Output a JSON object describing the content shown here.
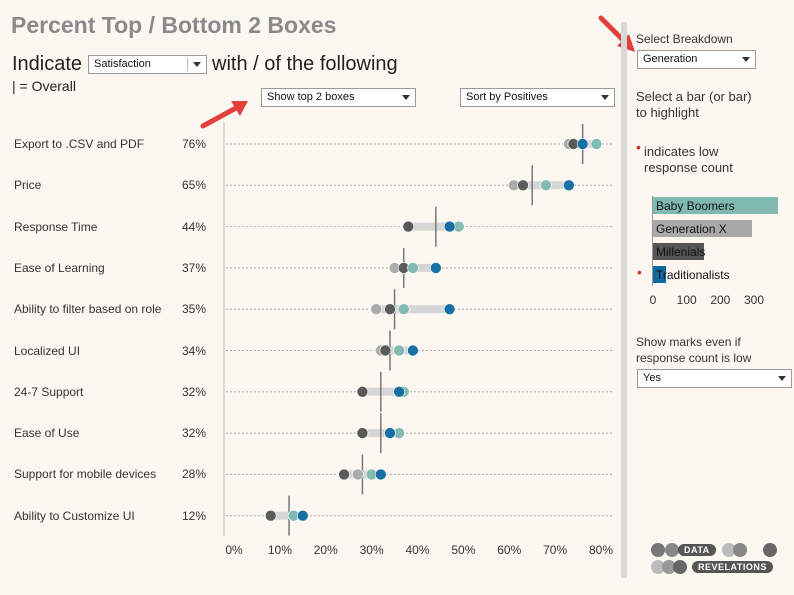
{
  "header": {
    "title": "Percent Top / Bottom 2 Boxes",
    "indicate_label": "Indicate",
    "with_label": "with / of the following",
    "overall_note": "| = Overall"
  },
  "controls": {
    "measure_dropdown": "Satisfaction",
    "boxes_dropdown": "Show top 2 boxes",
    "sort_dropdown": "Sort by Positives",
    "breakdown_dropdown": "Generation",
    "show_marks_dropdown": "Yes"
  },
  "sidebar": {
    "select_breakdown": "Select Breakdown",
    "select_bar_hint": "Select a bar (or bar) to highlight",
    "low_count_dot": "•",
    "low_count_hint": "indicates low response count",
    "show_marks_label": "Show marks even if response count is low"
  },
  "legend": {
    "items": [
      {
        "name": "Baby Boomers",
        "count": 370,
        "color": "#7fb9b0",
        "low": false
      },
      {
        "name": "Generation X",
        "count": 295,
        "color": "#a9a9a9",
        "low": false
      },
      {
        "name": "Millenials",
        "count": 150,
        "color": "#555555",
        "low": false
      },
      {
        "name": "Traditionalists",
        "count": 40,
        "color": "#0f6aa0",
        "low": true
      }
    ],
    "axis_ticks": [
      "0",
      "100",
      "200",
      "300"
    ],
    "max": 300
  },
  "logo": {
    "line1": "DATA",
    "line2": "REVELATIONS"
  },
  "colors": {
    "baby_boomers": "#7fb9b0",
    "generation_x": "#a9a9a9",
    "millenials": "#555555",
    "traditionalists": "#0f6aa0",
    "range_bar": "#d6d6d6",
    "overall_line": "#777777",
    "low_count_dot": "#c0392b"
  },
  "chart_data": {
    "type": "scatter",
    "title": "Percent Top / Bottom 2 Boxes",
    "xlim": [
      0,
      80
    ],
    "x_ticks": [
      "0%",
      "10%",
      "20%",
      "30%",
      "40%",
      "50%",
      "60%",
      "70%",
      "80%"
    ],
    "categories": [
      "Export to .CSV and PDF",
      "Price",
      "Response Time",
      "Ease of Learning",
      "Ability to filter based on role",
      "Localized UI",
      "24-7 Support",
      "Ease of Use",
      "Support for mobile devices",
      "Ability to Customize UI"
    ],
    "overall_labels": [
      "76%",
      "65%",
      "44%",
      "37%",
      "35%",
      "34%",
      "32%",
      "32%",
      "28%",
      "12%"
    ],
    "overall": [
      76,
      65,
      44,
      37,
      35,
      34,
      32,
      32,
      28,
      12
    ],
    "series": [
      {
        "name": "Generation X",
        "values": [
          73,
          61,
          38,
          35,
          31,
          32,
          28,
          28,
          27,
          13
        ]
      },
      {
        "name": "Millenials",
        "values": [
          74,
          63,
          38,
          37,
          34,
          33,
          28,
          28,
          24,
          8
        ]
      },
      {
        "name": "Baby Boomers",
        "values": [
          79,
          68,
          49,
          39,
          37,
          36,
          37,
          36,
          30,
          13
        ]
      },
      {
        "name": "Traditionalists",
        "values": [
          76,
          73,
          47,
          44,
          47,
          39,
          36,
          34,
          32,
          15
        ]
      }
    ]
  }
}
